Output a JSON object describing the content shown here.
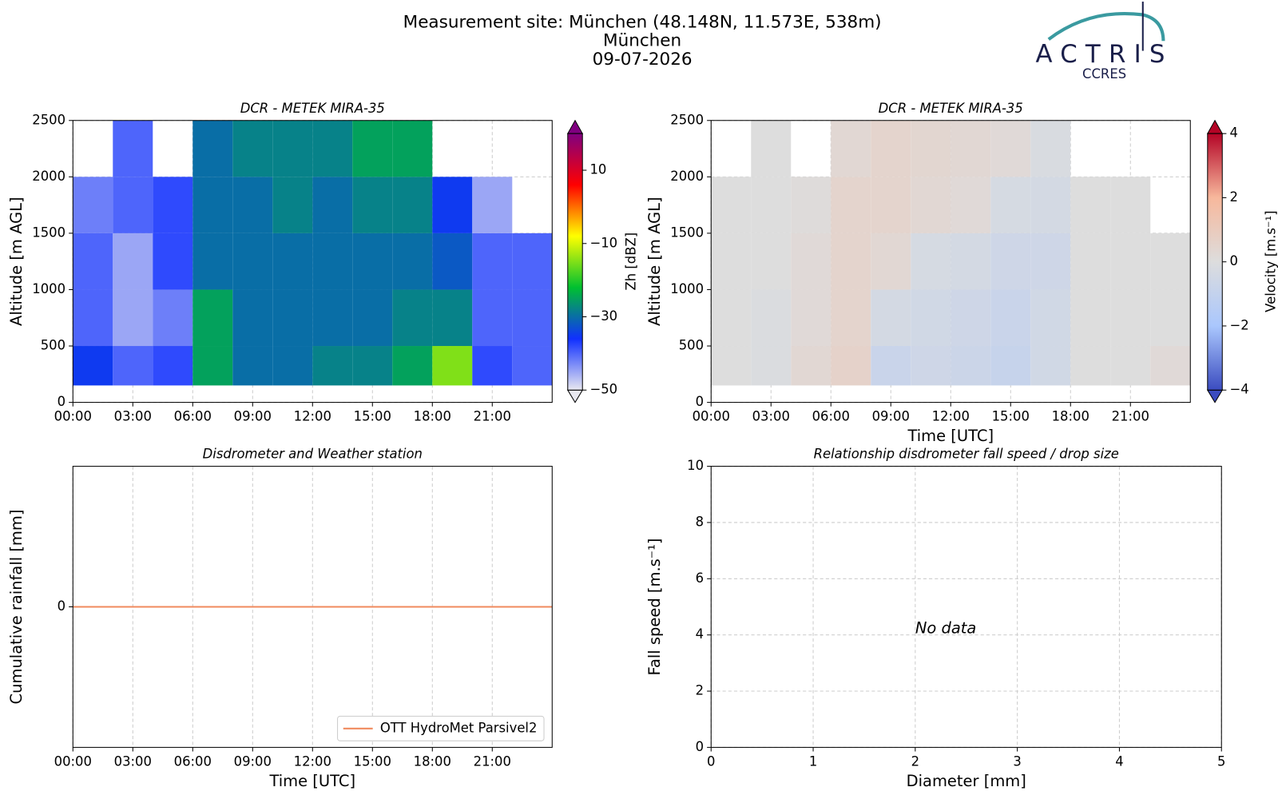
{
  "header": {
    "title_lines": [
      "Measurement site: München (48.148N, 11.573E, 538m)",
      "München",
      "09-07-2026"
    ],
    "logo": "ACTRIS",
    "logo_sub": "CCRES"
  },
  "chart_data": [
    {
      "type": "heatmap",
      "title": "DCR - METEK MIRA-35",
      "ylabel": "Altitude [m AGL]",
      "zlabel": "Zh [dBZ]",
      "xlim": [
        0,
        24
      ],
      "xticks": [
        {
          "value": 0,
          "label": "00:00"
        },
        {
          "value": 3,
          "label": "03:00"
        },
        {
          "value": 6,
          "label": "06:00"
        },
        {
          "value": 9,
          "label": "09:00"
        },
        {
          "value": 12,
          "label": "12:00"
        },
        {
          "value": 15,
          "label": "15:00"
        },
        {
          "value": 18,
          "label": "18:00"
        },
        {
          "value": 21,
          "label": "21:00"
        }
      ],
      "ylim": [
        0,
        2500
      ],
      "yticks": [
        0,
        500,
        1000,
        1500,
        2000,
        2500
      ],
      "grid": true,
      "x_bins": [
        0,
        2,
        4,
        6,
        8,
        10,
        12,
        14,
        16,
        18,
        20,
        22,
        24
      ],
      "y_bins": [
        150,
        500,
        1000,
        1500,
        2000,
        2500
      ],
      "z": [
        [
          -35,
          -40,
          -38,
          -25,
          -30,
          -30,
          -28,
          -28,
          -25,
          -15,
          -38,
          -40
        ],
        [
          -40,
          -45,
          -42,
          -25,
          -30,
          -30,
          -30,
          -30,
          -28,
          -28,
          -40,
          -40
        ],
        [
          -40,
          -45,
          -38,
          -30,
          -30,
          -30,
          -30,
          -30,
          -30,
          -32,
          -40,
          -40
        ],
        [
          -42,
          -40,
          -38,
          -30,
          -30,
          -28,
          -30,
          -28,
          -28,
          -35,
          -45,
          null
        ],
        [
          null,
          -40,
          null,
          -30,
          -28,
          -28,
          -28,
          -25,
          -25,
          null,
          null,
          null
        ]
      ],
      "zlim": [
        -50,
        20
      ],
      "zticks": [
        {
          "value": -50,
          "label": "−50"
        },
        {
          "value": -30,
          "label": "−30"
        },
        {
          "value": -10,
          "label": "−10"
        },
        10
      ],
      "colors": [
        "#e8e8f0",
        "#1030ff",
        "#00c030",
        "#ffff00",
        "#ff0000",
        "#800080"
      ]
    },
    {
      "type": "heatmap",
      "title": "DCR - METEK MIRA-35",
      "ylabel": "Altitude [m AGL]",
      "xlabel": "Time [UTC]",
      "zlabel": "Velocity [m.s⁻¹]",
      "xlim": [
        0,
        24
      ],
      "xticks": [
        {
          "value": 0,
          "label": "00:00"
        },
        {
          "value": 3,
          "label": "03:00"
        },
        {
          "value": 6,
          "label": "06:00"
        },
        {
          "value": 9,
          "label": "09:00"
        },
        {
          "value": 12,
          "label": "12:00"
        },
        {
          "value": 15,
          "label": "15:00"
        },
        {
          "value": 18,
          "label": "18:00"
        },
        {
          "value": 21,
          "label": "21:00"
        }
      ],
      "ylim": [
        0,
        2500
      ],
      "yticks": [
        0,
        500,
        1000,
        1500,
        2000,
        2500
      ],
      "grid": true,
      "x_bins": [
        0,
        2,
        4,
        6,
        8,
        10,
        12,
        14,
        16,
        18,
        20,
        22,
        24
      ],
      "y_bins": [
        150,
        500,
        1000,
        1500,
        2000,
        2500
      ],
      "z": [
        [
          0,
          -0.1,
          0.3,
          0.6,
          -0.8,
          -0.6,
          -0.7,
          -0.9,
          -0.5,
          0,
          0,
          0.2
        ],
        [
          0,
          -0.1,
          0.2,
          0.5,
          -0.4,
          -0.5,
          -0.6,
          -0.8,
          -0.5,
          0,
          0,
          0
        ],
        [
          0,
          0,
          0.2,
          0.5,
          0.3,
          -0.3,
          -0.4,
          -0.6,
          -0.6,
          0,
          0,
          0
        ],
        [
          0,
          0,
          0.1,
          0.5,
          0.5,
          0.3,
          0.2,
          -0.3,
          -0.4,
          0,
          0,
          null
        ],
        [
          null,
          0,
          null,
          0.3,
          0.5,
          0.4,
          0.3,
          0.2,
          -0.2,
          null,
          null,
          null
        ]
      ],
      "zlim": [
        -4,
        4
      ],
      "zticks": [
        {
          "value": -4,
          "label": "−4"
        },
        {
          "value": -2,
          "label": "−2"
        },
        0,
        2,
        4
      ],
      "colors": [
        "#3b4cc0",
        "#aac7fd",
        "#dddddd",
        "#f7b89c",
        "#b40426"
      ]
    },
    {
      "type": "line",
      "title": "Disdrometer and Weather station",
      "ylabel": "Cumulative rainfall [mm]",
      "xlabel": "Time [UTC]",
      "xlim": [
        0,
        24
      ],
      "xticks": [
        {
          "value": 0,
          "label": "00:00"
        },
        {
          "value": 3,
          "label": "03:00"
        },
        {
          "value": 6,
          "label": "06:00"
        },
        {
          "value": 9,
          "label": "09:00"
        },
        {
          "value": 12,
          "label": "12:00"
        },
        {
          "value": 15,
          "label": "15:00"
        },
        {
          "value": 18,
          "label": "18:00"
        },
        {
          "value": 21,
          "label": "21:00"
        }
      ],
      "ylim": [
        -0.055,
        0.055
      ],
      "yticks": [
        0
      ],
      "grid": true,
      "legend": "lower right",
      "x": [
        0,
        24
      ],
      "series": [
        {
          "name": "OTT HydroMet Parsivel2",
          "color": "#f08a5d",
          "values": [
            0,
            0
          ]
        }
      ]
    },
    {
      "type": "scatter",
      "title": "Relationship disdrometer fall speed / drop size",
      "ylabel": "Fall speed [m.s⁻¹]",
      "xlabel": "Diameter [mm]",
      "xlim": [
        0,
        5
      ],
      "xticks": [
        0,
        1,
        2,
        3,
        4,
        5
      ],
      "ylim": [
        0,
        10
      ],
      "yticks": [
        0,
        2,
        4,
        6,
        8,
        10
      ],
      "grid": true,
      "annotation": "No data"
    }
  ]
}
